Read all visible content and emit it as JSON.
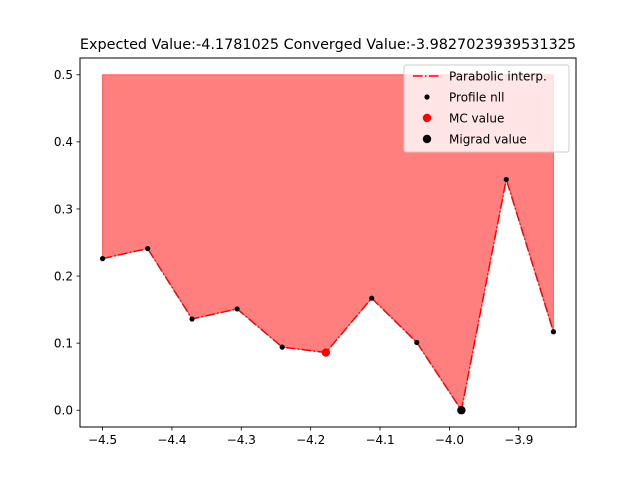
{
  "chart_data": {
    "type": "line",
    "title": "Expected Value:-4.1781025 Converged Value:-3.9827023939531325",
    "xlabel": "",
    "ylabel": "",
    "xlim": [
      -4.5325,
      -3.8175
    ],
    "ylim": [
      -0.025,
      0.525
    ],
    "x_ticks": [
      -4.5,
      -4.4,
      -4.3,
      -4.2,
      -4.1,
      -4.0,
      -3.9
    ],
    "x_tick_labels": [
      "−4.5",
      "−4.4",
      "−4.3",
      "−4.2",
      "−4.1",
      "−4.0",
      "−3.9"
    ],
    "y_ticks": [
      0.0,
      0.1,
      0.2,
      0.3,
      0.4,
      0.5
    ],
    "y_tick_labels": [
      "0.0",
      "0.1",
      "0.2",
      "0.3",
      "0.4",
      "0.5"
    ],
    "grid": false,
    "legend_position": "top-right",
    "fill_top": 0.5,
    "series": [
      {
        "name": "Parabolic interp.",
        "style": "dash-dot-line",
        "color": "#ff0000",
        "x": [
          -4.5,
          -4.435,
          -4.371,
          -4.306,
          -4.241,
          -4.178,
          -4.112,
          -4.047,
          -3.9827,
          -3.918,
          -3.85
        ],
        "y": [
          0.226,
          0.241,
          0.136,
          0.151,
          0.094,
          0.086,
          0.167,
          0.101,
          0.0,
          0.344,
          0.117
        ]
      },
      {
        "name": "Profile nll",
        "style": "points",
        "color": "#000000",
        "x": [
          -4.5,
          -4.435,
          -4.371,
          -4.306,
          -4.241,
          -4.112,
          -4.047,
          -3.918,
          -3.85
        ],
        "y": [
          0.226,
          0.241,
          0.136,
          0.151,
          0.094,
          0.167,
          0.101,
          0.344,
          0.117
        ]
      },
      {
        "name": "MC value",
        "style": "marker",
        "color": "#ff0000",
        "x": [
          -4.1781025
        ],
        "y": [
          0.086
        ]
      },
      {
        "name": "Migrad value",
        "style": "marker",
        "color": "#000000",
        "x": [
          -3.9827023939531325
        ],
        "y": [
          0.0
        ]
      }
    ],
    "fill_color": "#ff0000",
    "fill_opacity": 0.5
  }
}
